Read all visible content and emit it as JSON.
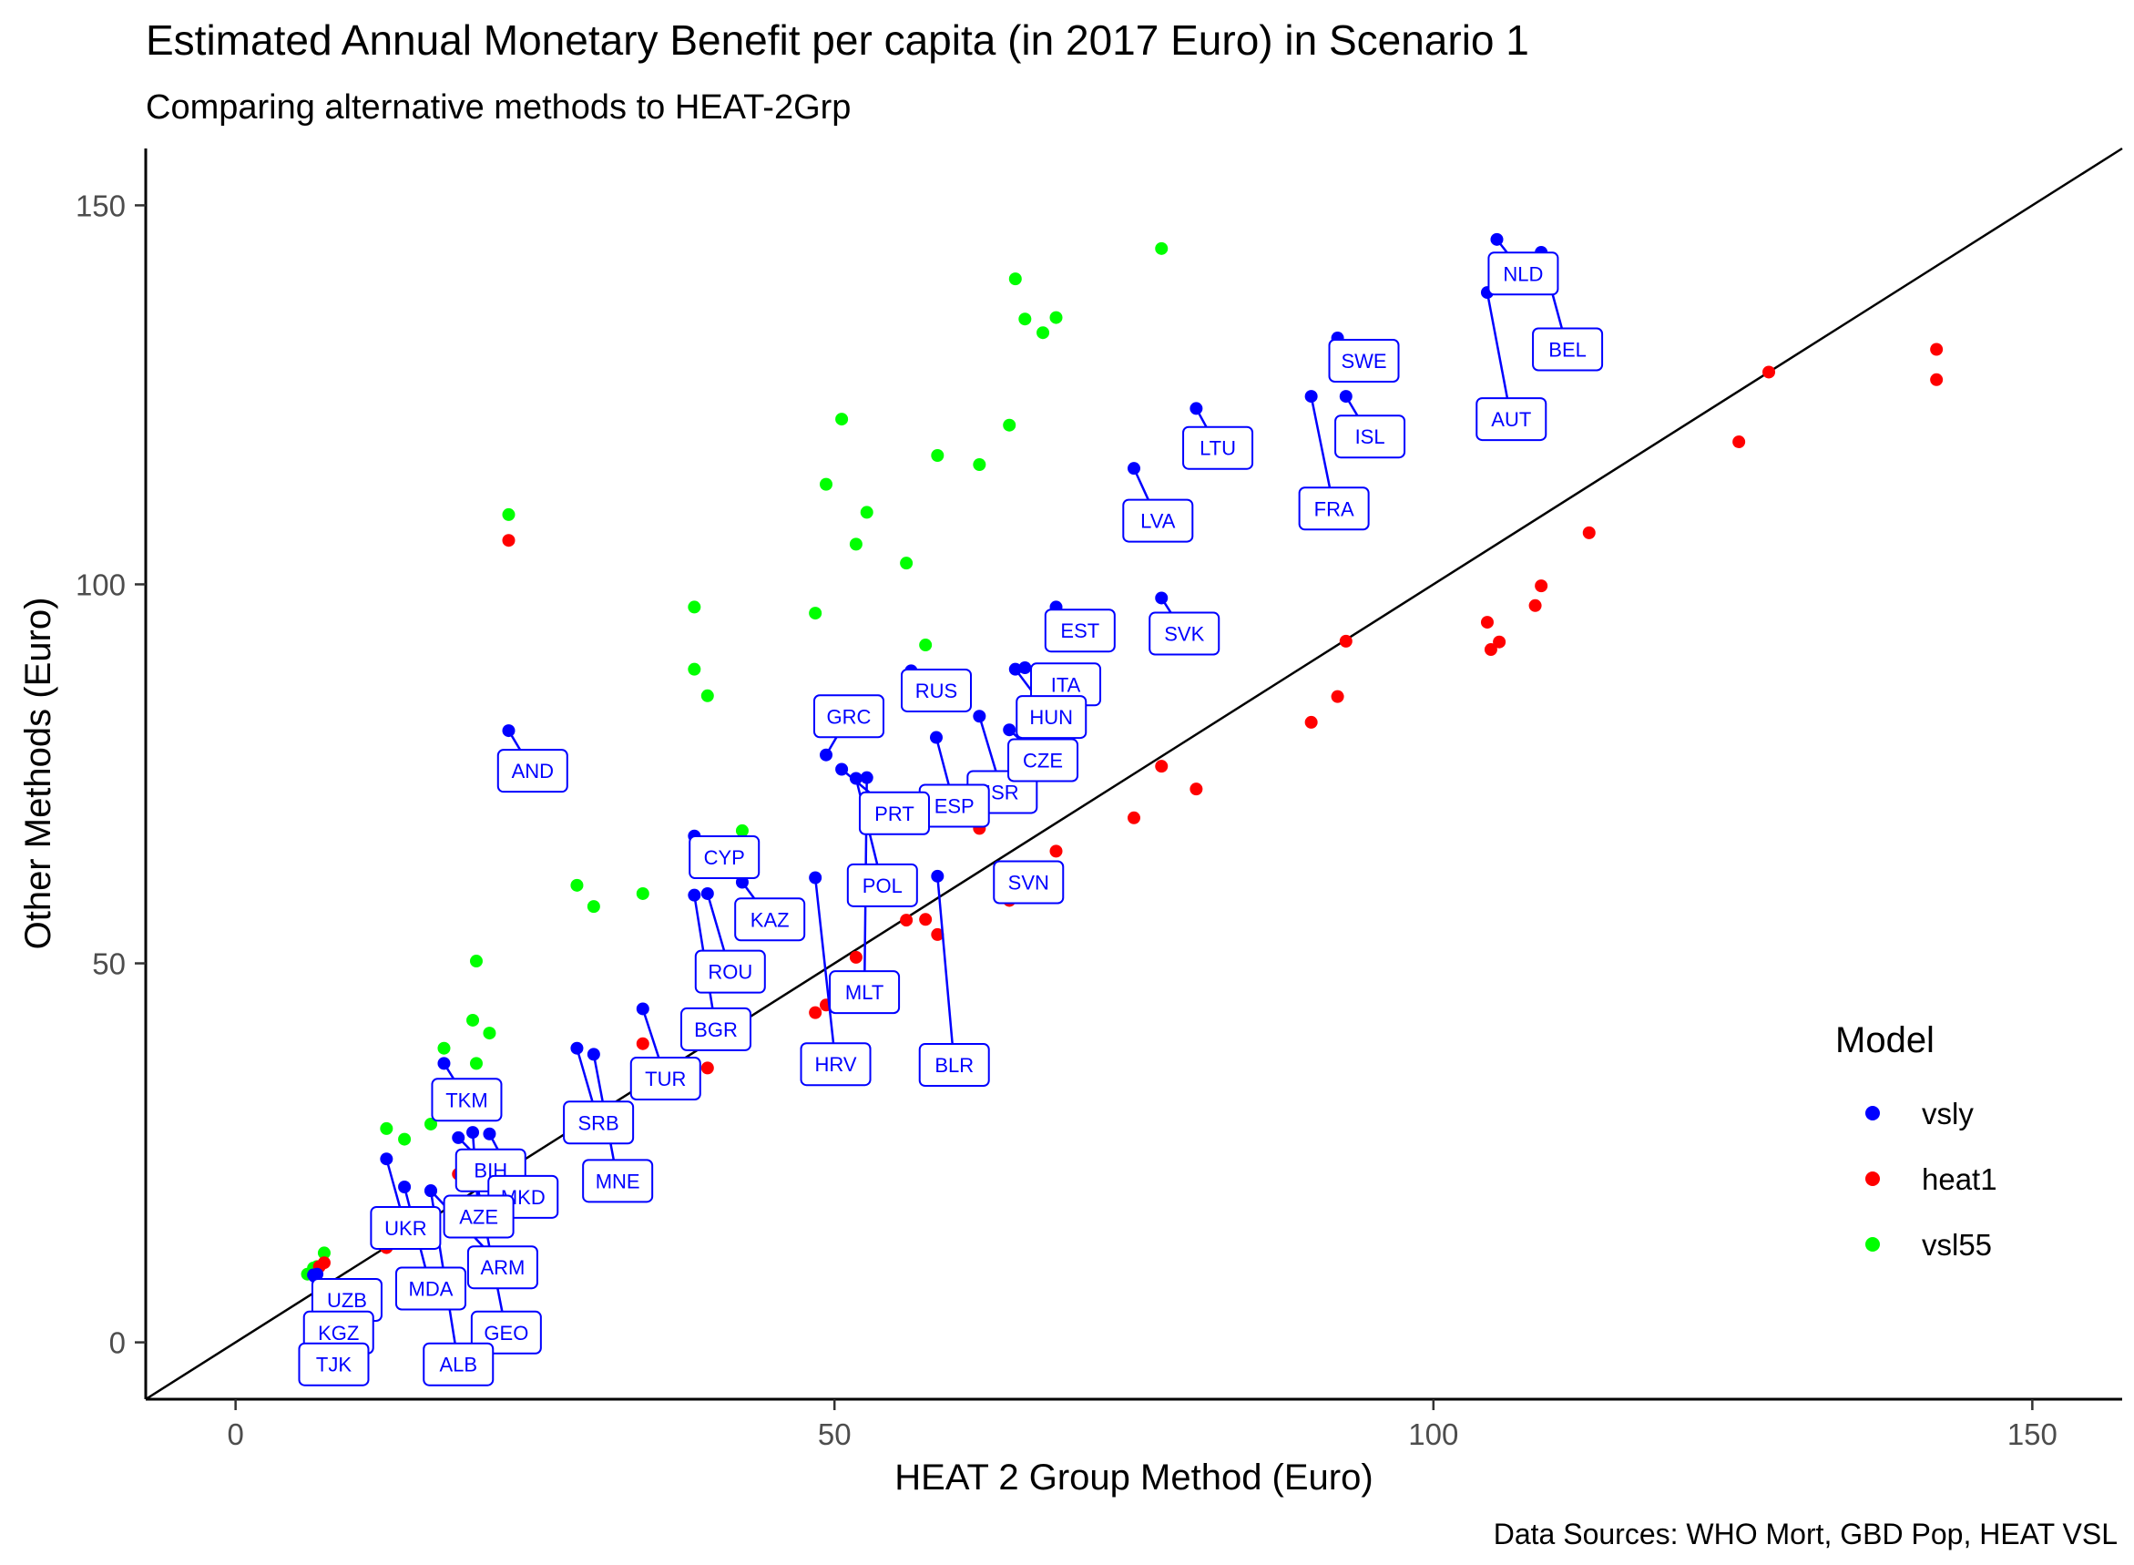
{
  "chart_data": {
    "type": "scatter",
    "title": "Estimated Annual Monetary Benefit per capita (in 2017 Euro) in Scenario 1",
    "subtitle": "Comparing alternative methods to HEAT-2Grp",
    "xlabel": "HEAT 2 Group Method (Euro)",
    "ylabel": "Other Methods (Euro)",
    "caption": "Data Sources: WHO Mort, GBD Pop, HEAT VSL",
    "xlim": [
      -7.5,
      157.5
    ],
    "ylim": [
      -7.5,
      157.5
    ],
    "x_ticks": [
      0,
      50,
      100,
      150
    ],
    "y_ticks": [
      0,
      50,
      100,
      150
    ],
    "grid": false,
    "reference_line": "y = x",
    "legend": {
      "title": "Model",
      "position": "right",
      "entries": [
        {
          "name": "vsly",
          "color": "#0000ff"
        },
        {
          "name": "heat1",
          "color": "#ff0000"
        },
        {
          "name": "vsl55",
          "color": "#00ff00"
        }
      ]
    },
    "series": [
      {
        "name": "vsly",
        "color": "#0000ff",
        "points": [
          {
            "x": 105.3,
            "y": 145.5,
            "label": "NLD"
          },
          {
            "x": 109.0,
            "y": 143.8,
            "label": "BEL"
          },
          {
            "x": 104.5,
            "y": 138.5,
            "label": "AUT"
          },
          {
            "x": 92.0,
            "y": 132.5,
            "label": "SWE"
          },
          {
            "x": 92.7,
            "y": 124.8,
            "label": "ISL"
          },
          {
            "x": 89.8,
            "y": 124.8,
            "label": "FRA"
          },
          {
            "x": 80.2,
            "y": 123.2,
            "label": "LTU"
          },
          {
            "x": 75.0,
            "y": 115.3,
            "label": "LVA"
          },
          {
            "x": 77.3,
            "y": 98.2,
            "label": "SVK"
          },
          {
            "x": 68.5,
            "y": 97.0,
            "label": "EST"
          },
          {
            "x": 65.9,
            "y": 89.0,
            "label": "ITA"
          },
          {
            "x": 65.1,
            "y": 88.8,
            "label": "HUN"
          },
          {
            "x": 56.4,
            "y": 88.6,
            "label": "RUS"
          },
          {
            "x": 62.1,
            "y": 82.6,
            "label": "ISR"
          },
          {
            "x": 64.6,
            "y": 80.8,
            "label": "CZE"
          },
          {
            "x": 58.5,
            "y": 79.8,
            "label": "ESP"
          },
          {
            "x": 66.8,
            "y": 62.0,
            "label": "SVN"
          },
          {
            "x": 49.3,
            "y": 77.5,
            "label": "GRC"
          },
          {
            "x": 50.6,
            "y": 75.6,
            "label": "PRT"
          },
          {
            "x": 51.8,
            "y": 74.4,
            "label": "POL"
          },
          {
            "x": 52.7,
            "y": 74.5,
            "label": "MLT"
          },
          {
            "x": 48.4,
            "y": 61.3,
            "label": "HRV"
          },
          {
            "x": 58.6,
            "y": 61.5,
            "label": "BLR"
          },
          {
            "x": 38.3,
            "y": 66.8,
            "label": "CYP"
          },
          {
            "x": 42.3,
            "y": 60.7,
            "label": "KAZ"
          },
          {
            "x": 39.4,
            "y": 59.2,
            "label": "ROU"
          },
          {
            "x": 38.3,
            "y": 59.0,
            "label": "BGR"
          },
          {
            "x": 34.0,
            "y": 44.0,
            "label": "TUR"
          },
          {
            "x": 28.5,
            "y": 38.8,
            "label": "SRB"
          },
          {
            "x": 29.9,
            "y": 38.0,
            "label": "MNE"
          },
          {
            "x": 22.8,
            "y": 80.7,
            "label": "AND"
          },
          {
            "x": 17.4,
            "y": 36.8,
            "label": "TKM"
          },
          {
            "x": 18.6,
            "y": 27.0,
            "label": "BIH"
          },
          {
            "x": 21.2,
            "y": 27.5,
            "label": "MKD"
          },
          {
            "x": 19.8,
            "y": 27.7,
            "label": "AZE"
          },
          {
            "x": 12.6,
            "y": 24.2,
            "label": "UKR"
          },
          {
            "x": 14.1,
            "y": 20.5,
            "label": "MDA"
          },
          {
            "x": 16.3,
            "y": 20.0,
            "label": "ARM"
          },
          {
            "x": 20.1,
            "y": 21.4,
            "label": "GEO"
          },
          {
            "x": 16.3,
            "y": 20.0,
            "label": "ALB"
          },
          {
            "x": 6.5,
            "y": 8.9,
            "label": "UZB"
          },
          {
            "x": 6.6,
            "y": 8.7,
            "label": "KGZ"
          },
          {
            "x": 6.8,
            "y": 9.0,
            "label": "TJK"
          }
        ]
      },
      {
        "name": "heat1",
        "color": "#ff0000",
        "points": [
          {
            "x": 142.0,
            "y": 131.0
          },
          {
            "x": 142.0,
            "y": 127.0
          },
          {
            "x": 128.0,
            "y": 128.0
          },
          {
            "x": 125.5,
            "y": 118.8
          },
          {
            "x": 113.0,
            "y": 106.8
          },
          {
            "x": 109.0,
            "y": 99.8
          },
          {
            "x": 108.5,
            "y": 97.2
          },
          {
            "x": 105.5,
            "y": 92.4
          },
          {
            "x": 104.8,
            "y": 91.4
          },
          {
            "x": 104.5,
            "y": 95.0
          },
          {
            "x": 92.7,
            "y": 92.5
          },
          {
            "x": 92.0,
            "y": 85.2
          },
          {
            "x": 89.8,
            "y": 81.8
          },
          {
            "x": 80.2,
            "y": 73.0
          },
          {
            "x": 77.3,
            "y": 76.0
          },
          {
            "x": 75.0,
            "y": 69.2
          },
          {
            "x": 68.5,
            "y": 64.8
          },
          {
            "x": 67.4,
            "y": 59.2
          },
          {
            "x": 64.6,
            "y": 58.3
          },
          {
            "x": 62.1,
            "y": 67.8
          },
          {
            "x": 58.6,
            "y": 53.8
          },
          {
            "x": 57.6,
            "y": 55.8
          },
          {
            "x": 56.0,
            "y": 55.7
          },
          {
            "x": 51.8,
            "y": 50.8
          },
          {
            "x": 49.3,
            "y": 44.5
          },
          {
            "x": 48.4,
            "y": 43.5
          },
          {
            "x": 39.4,
            "y": 36.2
          },
          {
            "x": 34.0,
            "y": 39.4
          },
          {
            "x": 28.5,
            "y": 27.0
          },
          {
            "x": 22.8,
            "y": 105.8
          },
          {
            "x": 18.6,
            "y": 22.2
          },
          {
            "x": 12.6,
            "y": 12.5
          },
          {
            "x": 7.4,
            "y": 10.5
          },
          {
            "x": 7.0,
            "y": 10.0
          }
        ]
      },
      {
        "name": "vsl55",
        "color": "#00ff00",
        "points": [
          {
            "x": 77.3,
            "y": 144.3
          },
          {
            "x": 65.1,
            "y": 140.3
          },
          {
            "x": 65.9,
            "y": 135.0
          },
          {
            "x": 68.5,
            "y": 135.2
          },
          {
            "x": 67.4,
            "y": 133.2
          },
          {
            "x": 50.6,
            "y": 121.8
          },
          {
            "x": 64.6,
            "y": 121.0
          },
          {
            "x": 58.6,
            "y": 117.0
          },
          {
            "x": 62.1,
            "y": 115.8
          },
          {
            "x": 49.3,
            "y": 113.2
          },
          {
            "x": 52.7,
            "y": 109.5
          },
          {
            "x": 51.8,
            "y": 105.3
          },
          {
            "x": 56.0,
            "y": 102.8
          },
          {
            "x": 22.8,
            "y": 109.2
          },
          {
            "x": 38.3,
            "y": 97.0
          },
          {
            "x": 48.4,
            "y": 96.2
          },
          {
            "x": 57.6,
            "y": 92.0
          },
          {
            "x": 38.3,
            "y": 88.8
          },
          {
            "x": 39.4,
            "y": 85.3
          },
          {
            "x": 42.3,
            "y": 67.5
          },
          {
            "x": 28.5,
            "y": 60.3
          },
          {
            "x": 29.9,
            "y": 57.5
          },
          {
            "x": 34.0,
            "y": 59.2
          },
          {
            "x": 20.1,
            "y": 50.3
          },
          {
            "x": 19.8,
            "y": 42.5
          },
          {
            "x": 21.2,
            "y": 40.8
          },
          {
            "x": 17.4,
            "y": 38.8
          },
          {
            "x": 20.1,
            "y": 36.8
          },
          {
            "x": 16.3,
            "y": 28.8
          },
          {
            "x": 14.1,
            "y": 26.8
          },
          {
            "x": 12.6,
            "y": 28.2
          },
          {
            "x": 7.4,
            "y": 11.8
          },
          {
            "x": 6.8,
            "y": 10.0
          },
          {
            "x": 6.5,
            "y": 9.8
          },
          {
            "x": 6.0,
            "y": 9.0
          }
        ]
      }
    ],
    "labels": [
      {
        "text": "NLD",
        "x": 107.5,
        "y": 141.0
      },
      {
        "text": "BEL",
        "x": 111.2,
        "y": 131.0
      },
      {
        "text": "AUT",
        "x": 106.5,
        "y": 121.8
      },
      {
        "text": "SWE",
        "x": 94.2,
        "y": 129.5
      },
      {
        "text": "ISL",
        "x": 94.7,
        "y": 119.5
      },
      {
        "text": "FRA",
        "x": 91.7,
        "y": 110.0
      },
      {
        "text": "LTU",
        "x": 82.0,
        "y": 118.0
      },
      {
        "text": "LVA",
        "x": 77.0,
        "y": 108.4
      },
      {
        "text": "SVK",
        "x": 79.2,
        "y": 93.5
      },
      {
        "text": "EST",
        "x": 70.5,
        "y": 93.9
      },
      {
        "text": "ITA",
        "x": 69.3,
        "y": 86.8
      },
      {
        "text": "HUN",
        "x": 68.1,
        "y": 82.5
      },
      {
        "text": "RUS",
        "x": 58.5,
        "y": 86.0
      },
      {
        "text": "ISR",
        "x": 64.0,
        "y": 72.6
      },
      {
        "text": "CZE",
        "x": 67.4,
        "y": 76.8
      },
      {
        "text": "ESP",
        "x": 60.0,
        "y": 70.8
      },
      {
        "text": "SVN",
        "x": 66.2,
        "y": 60.7
      },
      {
        "text": "GRC",
        "x": 51.2,
        "y": 82.6
      },
      {
        "text": "PRT",
        "x": 55.0,
        "y": 69.8
      },
      {
        "text": "POL",
        "x": 54.0,
        "y": 60.3
      },
      {
        "text": "MLT",
        "x": 52.5,
        "y": 46.2
      },
      {
        "text": "HRV",
        "x": 50.1,
        "y": 36.7
      },
      {
        "text": "BLR",
        "x": 60.0,
        "y": 36.6
      },
      {
        "text": "CYP",
        "x": 40.8,
        "y": 64.0
      },
      {
        "text": "KAZ",
        "x": 44.6,
        "y": 55.8
      },
      {
        "text": "ROU",
        "x": 41.3,
        "y": 48.9
      },
      {
        "text": "BGR",
        "x": 40.1,
        "y": 41.3
      },
      {
        "text": "TUR",
        "x": 35.9,
        "y": 34.8
      },
      {
        "text": "SRB",
        "x": 30.3,
        "y": 29.0
      },
      {
        "text": "MNE",
        "x": 31.9,
        "y": 21.3
      },
      {
        "text": "AND",
        "x": 24.8,
        "y": 75.4
      },
      {
        "text": "TKM",
        "x": 19.3,
        "y": 32.0
      },
      {
        "text": "BIH",
        "x": 21.3,
        "y": 22.7
      },
      {
        "text": "MKD",
        "x": 24.0,
        "y": 19.2
      },
      {
        "text": "AZE",
        "x": 20.3,
        "y": 16.6
      },
      {
        "text": "UKR",
        "x": 14.2,
        "y": 15.1
      },
      {
        "text": "MDA",
        "x": 16.3,
        "y": 7.1
      },
      {
        "text": "ARM",
        "x": 22.3,
        "y": 9.9
      },
      {
        "text": "GEO",
        "x": 22.6,
        "y": 1.3
      },
      {
        "text": "ALB",
        "x": 18.6,
        "y": -2.9
      },
      {
        "text": "UZB",
        "x": 9.3,
        "y": 5.6
      },
      {
        "text": "KGZ",
        "x": 8.6,
        "y": 1.3
      },
      {
        "text": "TJK",
        "x": 8.2,
        "y": -2.9
      }
    ]
  }
}
